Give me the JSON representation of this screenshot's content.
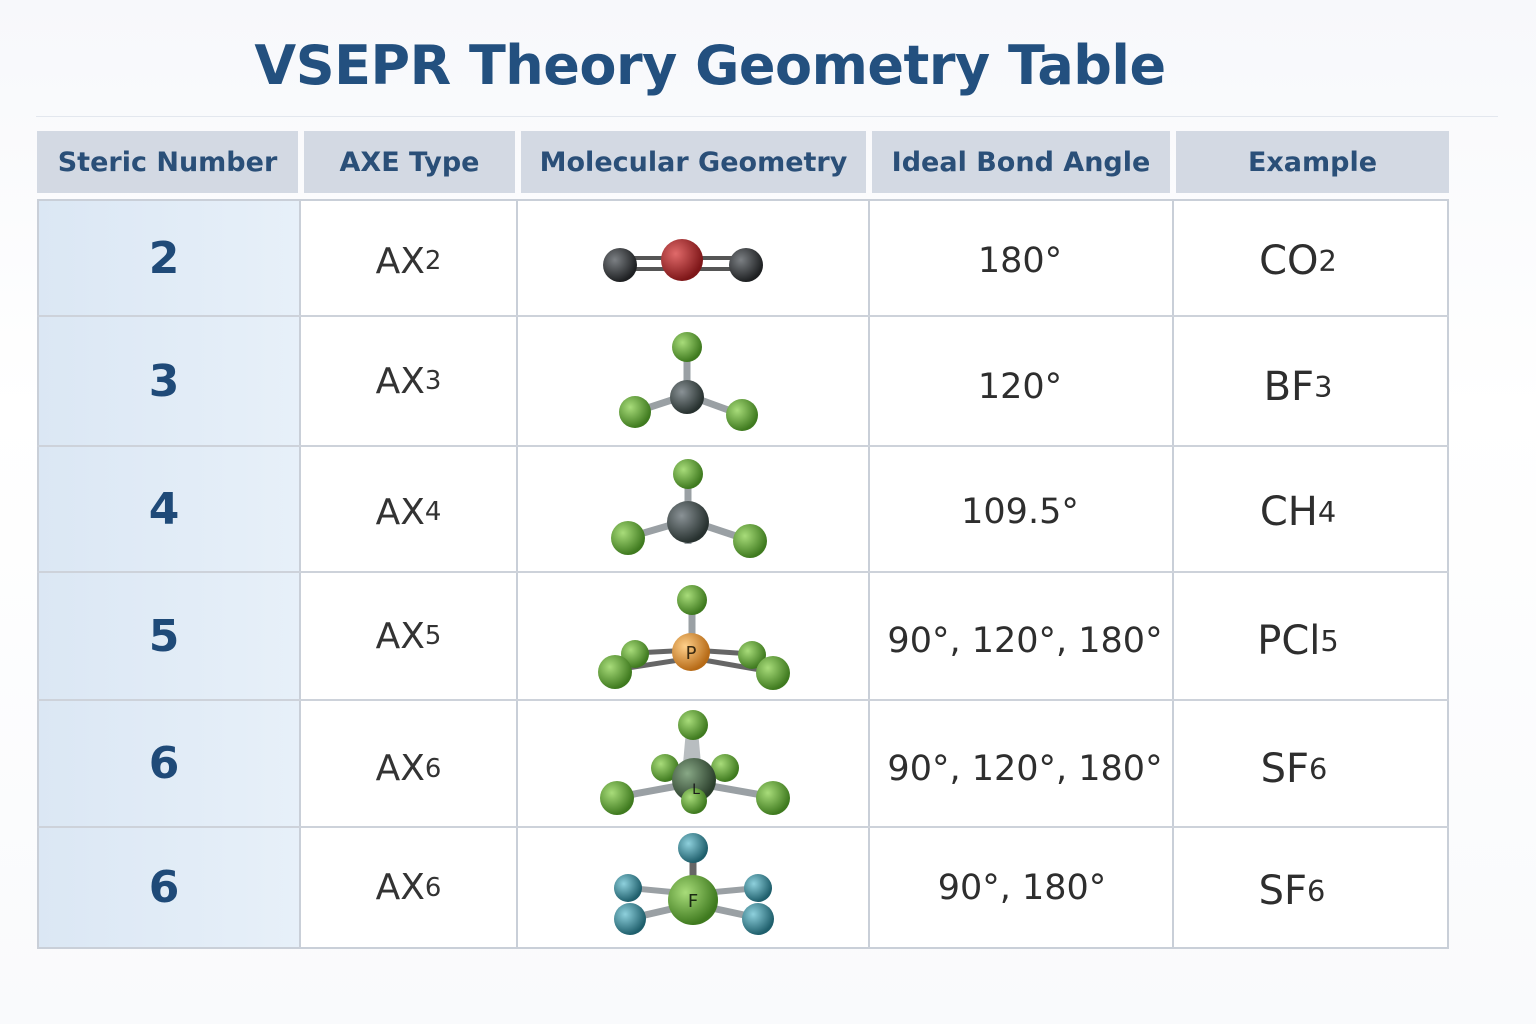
{
  "title": "VSEPR Theory Geometry Table",
  "headers": [
    "Steric Number",
    "AXE Type",
    "Molecular Geometry",
    "Ideal Bond Angle",
    "Example"
  ],
  "rows": [
    {
      "steric": "2",
      "axe_base": "AX",
      "axe_sub": "2",
      "geometry_icon": "linear-molecule-icon",
      "angle": "180°",
      "ex_base": "CO",
      "ex_sub": "2",
      "ex_tail": ""
    },
    {
      "steric": "3",
      "axe_base": "AX",
      "axe_sub": "3",
      "geometry_icon": "trigonal-planar-molecule-icon",
      "angle": "120°",
      "ex_base": "BF",
      "ex_sub": "3",
      "ex_tail": ""
    },
    {
      "steric": "4",
      "axe_base": "AX",
      "axe_sub": "4",
      "geometry_icon": "tetrahedral-molecule-icon",
      "angle": "109.5°",
      "ex_base": "CH",
      "ex_sub": "4",
      "ex_tail": ""
    },
    {
      "steric": "5",
      "axe_base": "AX",
      "axe_sub": "5",
      "geometry_icon": "trigonal-bipyramidal-molecule-icon",
      "angle": "90°, 120°, 180°",
      "ex_base": "PCl",
      "ex_sub": "5",
      "ex_tail": "",
      "atom_label": "P"
    },
    {
      "steric": "6",
      "axe_base": "AX",
      "axe_sub": "6",
      "geometry_icon": "octahedral-molecule-icon",
      "angle": "90°, 120°, 180°",
      "ex_base": "SF",
      "ex_sub": "6",
      "ex_tail": "",
      "atom_label": "L"
    },
    {
      "steric": "6",
      "axe_base": "AX",
      "axe_sub": "6",
      "geometry_icon": "square-molecule-icon",
      "angle": "90°, 180°",
      "ex_base": "SF",
      "ex_sub": "6",
      "ex_tail": "",
      "atom_label": "F"
    }
  ],
  "colors": {
    "title": "#23507f",
    "header_bg": "#d3d9e3",
    "steric_col_bg": "#dbe7f4",
    "oxygen": "#b0282a",
    "carbon": "#3b3d40",
    "halogen_green": "#6fae3d",
    "phosphorus": "#e69a3c",
    "fluorine_teal": "#3f8fa0"
  }
}
